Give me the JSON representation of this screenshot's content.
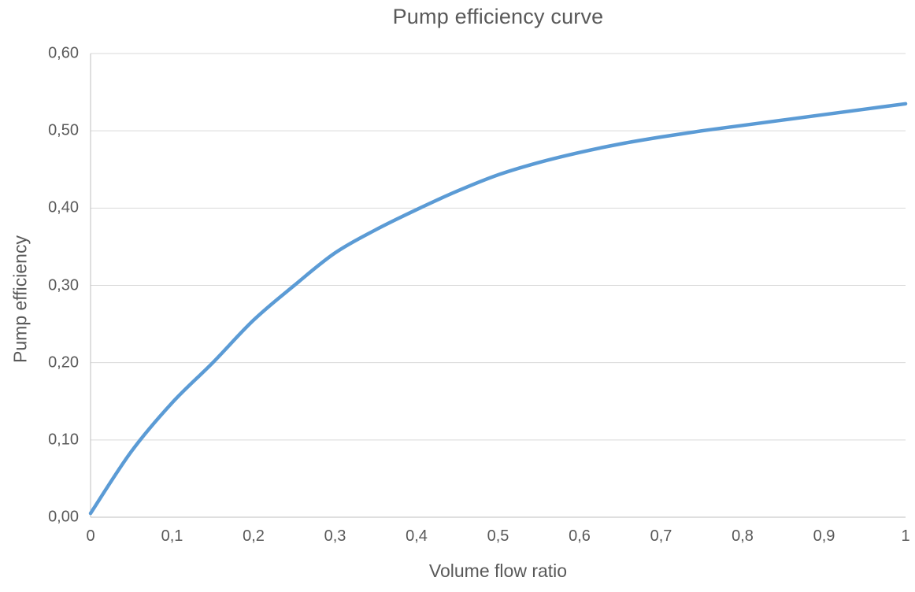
{
  "chart": {
    "title": "Pump efficiency curve",
    "x_axis_label": "Volume flow ratio",
    "y_axis_label": "Pump efficiency"
  },
  "chart_data": {
    "type": "line",
    "title": "Pump efficiency curve",
    "xlabel": "Volume flow ratio",
    "ylabel": "Pump efficiency",
    "xlim": [
      0,
      1
    ],
    "ylim": [
      0,
      0.6
    ],
    "grid": "horizontal",
    "legend_position": "none",
    "x_ticks": {
      "values": [
        0,
        0.1,
        0.2,
        0.3,
        0.4,
        0.5,
        0.6,
        0.7,
        0.8,
        0.9,
        1
      ],
      "labels": [
        "0",
        "0,1",
        "0,2",
        "0,3",
        "0,4",
        "0,5",
        "0,6",
        "0,7",
        "0,8",
        "0,9",
        "1"
      ]
    },
    "y_ticks": {
      "values": [
        0,
        0.1,
        0.2,
        0.3,
        0.4,
        0.5,
        0.6
      ],
      "labels": [
        "0,00",
        "0,10",
        "0,20",
        "0,30",
        "0,40",
        "0,50",
        "0,60"
      ]
    },
    "series": [
      {
        "name": "Pump efficiency",
        "color": "#5B9BD5",
        "x": [
          0,
          0.05,
          0.1,
          0.15,
          0.2,
          0.25,
          0.3,
          0.35,
          0.4,
          0.45,
          0.5,
          0.55,
          0.6,
          0.65,
          0.7,
          0.75,
          0.8,
          0.85,
          0.9,
          0.95,
          1.0
        ],
        "y": [
          0.005,
          0.085,
          0.148,
          0.2,
          0.255,
          0.3,
          0.342,
          0.372,
          0.398,
          0.422,
          0.443,
          0.459,
          0.472,
          0.483,
          0.492,
          0.5,
          0.507,
          0.514,
          0.521,
          0.528,
          0.535
        ]
      }
    ]
  },
  "style": {
    "line_color": "#5B9BD5",
    "grid_color": "#D9D9D9",
    "axis_color": "#BFBFBF",
    "text_color": "#595959",
    "background": "#FFFFFF"
  }
}
